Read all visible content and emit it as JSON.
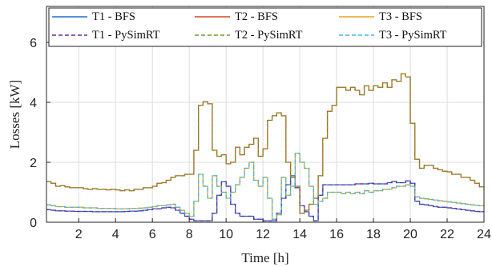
{
  "chart_data": {
    "type": "line",
    "step": true,
    "title": "",
    "xlabel": "Time [h]",
    "ylabel": "Losses [kW]",
    "xlim": [
      0.25,
      24
    ],
    "ylim": [
      0,
      7.2
    ],
    "xticks": [
      2,
      4,
      6,
      8,
      10,
      12,
      14,
      16,
      18,
      20,
      22,
      24
    ],
    "yticks": [
      0,
      2,
      4,
      6
    ],
    "grid": true,
    "legend": {
      "placement": "top",
      "columns": 3
    },
    "x": [
      0.25,
      0.5,
      0.75,
      1,
      1.25,
      1.5,
      1.75,
      2,
      2.25,
      2.5,
      2.75,
      3,
      3.25,
      3.5,
      3.75,
      4,
      4.25,
      4.5,
      4.75,
      5,
      5.25,
      5.5,
      5.75,
      6,
      6.25,
      6.5,
      6.75,
      7,
      7.25,
      7.5,
      7.75,
      8,
      8.25,
      8.5,
      8.75,
      9,
      9.25,
      9.5,
      9.75,
      10,
      10.25,
      10.5,
      10.75,
      11,
      11.25,
      11.5,
      11.75,
      12,
      12.25,
      12.5,
      12.75,
      13,
      13.25,
      13.5,
      13.75,
      14,
      14.25,
      14.5,
      14.75,
      15,
      15.25,
      15.5,
      15.75,
      16,
      16.25,
      16.5,
      16.75,
      17,
      17.25,
      17.5,
      17.75,
      18,
      18.25,
      18.5,
      18.75,
      19,
      19.25,
      19.5,
      19.75,
      20,
      20.25,
      20.5,
      20.75,
      21,
      21.25,
      21.5,
      21.75,
      22,
      22.25,
      22.5,
      22.75,
      23,
      23.25,
      23.5,
      23.75
    ],
    "series": [
      {
        "name": "T1 - BFS",
        "color": "#1f6fd0",
        "dash": "solid",
        "values": [
          0.42,
          0.4,
          0.38,
          0.38,
          0.37,
          0.37,
          0.36,
          0.36,
          0.36,
          0.36,
          0.35,
          0.35,
          0.35,
          0.35,
          0.35,
          0.35,
          0.35,
          0.36,
          0.37,
          0.37,
          0.38,
          0.4,
          0.42,
          0.45,
          0.45,
          0.48,
          0.5,
          0.48,
          0.4,
          0.3,
          0.2,
          0.1,
          0.05,
          0.05,
          0.05,
          0.05,
          0.3,
          0.9,
          1.35,
          1.2,
          0.6,
          0.3,
          0.2,
          0.2,
          0.2,
          0.1,
          0.1,
          0.05,
          0.05,
          0.05,
          0.3,
          0.8,
          1.25,
          1.55,
          1.15,
          0.55,
          0.35,
          0.2,
          0.05,
          0.9,
          1.25,
          1.25,
          1.25,
          1.25,
          1.25,
          1.25,
          1.25,
          1.28,
          1.28,
          1.28,
          1.3,
          1.28,
          1.28,
          1.28,
          1.32,
          1.36,
          1.32,
          1.32,
          1.38,
          1.3,
          0.7,
          0.6,
          0.58,
          0.55,
          0.52,
          0.5,
          0.5,
          0.48,
          0.46,
          0.44,
          0.42,
          0.4,
          0.38,
          0.36,
          0.35
        ]
      },
      {
        "name": "T2 - BFS",
        "color": "#d8471f",
        "dash": "solid",
        "values": [
          1.35,
          1.3,
          1.2,
          1.22,
          1.18,
          1.15,
          1.15,
          1.15,
          1.12,
          1.1,
          1.12,
          1.1,
          1.1,
          1.08,
          1.1,
          1.08,
          1.05,
          1.08,
          1.05,
          1.1,
          1.1,
          1.15,
          1.15,
          1.2,
          1.3,
          1.32,
          1.4,
          1.5,
          1.55,
          1.55,
          1.6,
          1.6,
          2.4,
          3.9,
          4.02,
          3.95,
          2.4,
          2.2,
          2.25,
          1.95,
          2.0,
          2.5,
          2.25,
          2.5,
          2.6,
          2.8,
          2.2,
          2.45,
          3.4,
          3.55,
          3.65,
          3.55,
          2.0,
          1.5,
          1.2,
          0.3,
          0.4,
          0.6,
          0.8,
          1.55,
          2.8,
          3.7,
          3.9,
          4.5,
          4.5,
          4.4,
          4.5,
          4.4,
          4.25,
          4.55,
          4.4,
          4.55,
          4.5,
          4.65,
          4.5,
          4.75,
          4.7,
          4.95,
          4.85,
          3.3,
          2.1,
          1.8,
          1.9,
          1.9,
          1.8,
          1.75,
          1.7,
          1.68,
          1.6,
          1.6,
          1.5,
          1.5,
          1.4,
          1.3,
          1.18
        ]
      },
      {
        "name": "T3 - BFS",
        "color": "#e8a41a",
        "dash": "solid",
        "values": [
          0.58,
          0.55,
          0.52,
          0.52,
          0.5,
          0.5,
          0.5,
          0.5,
          0.48,
          0.48,
          0.48,
          0.46,
          0.46,
          0.46,
          0.46,
          0.45,
          0.45,
          0.45,
          0.46,
          0.46,
          0.47,
          0.48,
          0.5,
          0.52,
          0.55,
          0.55,
          0.58,
          0.6,
          0.5,
          0.4,
          0.3,
          0.2,
          0.7,
          1.6,
          1.2,
          0.8,
          1.55,
          1.2,
          1.0,
          0.8,
          1.0,
          1.25,
          1.5,
          1.8,
          2.0,
          1.4,
          1.2,
          1.5,
          0.8,
          0.1,
          0.25,
          1.5,
          0.9,
          1.2,
          2.3,
          2.0,
          1.8,
          1.2,
          0.6,
          0.7,
          0.8,
          1.0,
          1.0,
          1.0,
          0.95,
          1.0,
          0.95,
          1.0,
          0.95,
          1.05,
          1.0,
          1.05,
          1.05,
          1.1,
          1.1,
          1.15,
          1.2,
          1.2,
          1.25,
          1.2,
          0.85,
          0.8,
          0.78,
          0.76,
          0.74,
          0.72,
          0.7,
          0.68,
          0.66,
          0.64,
          0.62,
          0.6,
          0.58,
          0.56,
          0.55
        ]
      },
      {
        "name": "T1 - PySimRT",
        "color": "#6a2b9a",
        "dash": "dashed",
        "values": [
          0.42,
          0.4,
          0.38,
          0.38,
          0.37,
          0.37,
          0.36,
          0.36,
          0.36,
          0.36,
          0.35,
          0.35,
          0.35,
          0.35,
          0.35,
          0.35,
          0.35,
          0.36,
          0.37,
          0.37,
          0.38,
          0.4,
          0.42,
          0.45,
          0.45,
          0.48,
          0.5,
          0.48,
          0.4,
          0.3,
          0.2,
          0.1,
          0.05,
          0.05,
          0.05,
          0.05,
          0.3,
          0.9,
          1.35,
          1.2,
          0.6,
          0.3,
          0.2,
          0.2,
          0.2,
          0.1,
          0.1,
          0.05,
          0.05,
          0.05,
          0.3,
          0.8,
          1.25,
          1.55,
          1.15,
          0.55,
          0.35,
          0.2,
          0.05,
          0.9,
          1.25,
          1.25,
          1.25,
          1.25,
          1.25,
          1.25,
          1.25,
          1.28,
          1.28,
          1.28,
          1.3,
          1.28,
          1.28,
          1.28,
          1.32,
          1.36,
          1.32,
          1.32,
          1.38,
          1.3,
          0.7,
          0.6,
          0.58,
          0.55,
          0.52,
          0.5,
          0.5,
          0.48,
          0.46,
          0.44,
          0.42,
          0.4,
          0.38,
          0.36,
          0.35
        ]
      },
      {
        "name": "T2 - PySimRT",
        "color": "#6f9a2a",
        "dash": "dashed",
        "values": [
          1.35,
          1.3,
          1.2,
          1.22,
          1.18,
          1.15,
          1.15,
          1.15,
          1.12,
          1.1,
          1.12,
          1.1,
          1.1,
          1.08,
          1.1,
          1.08,
          1.05,
          1.08,
          1.05,
          1.1,
          1.1,
          1.15,
          1.15,
          1.2,
          1.3,
          1.32,
          1.4,
          1.5,
          1.55,
          1.55,
          1.6,
          1.6,
          2.4,
          3.9,
          4.02,
          3.95,
          2.4,
          2.2,
          2.25,
          1.95,
          2.0,
          2.5,
          2.25,
          2.5,
          2.6,
          2.8,
          2.2,
          2.45,
          3.4,
          3.55,
          3.65,
          3.55,
          2.0,
          1.5,
          1.2,
          0.3,
          0.4,
          0.6,
          0.8,
          1.55,
          2.8,
          3.7,
          3.9,
          4.5,
          4.5,
          4.4,
          4.5,
          4.4,
          4.25,
          4.55,
          4.4,
          4.55,
          4.5,
          4.65,
          4.5,
          4.75,
          4.7,
          4.95,
          4.85,
          3.3,
          2.1,
          1.8,
          1.9,
          1.9,
          1.8,
          1.75,
          1.7,
          1.68,
          1.6,
          1.6,
          1.5,
          1.5,
          1.4,
          1.3,
          1.18
        ]
      },
      {
        "name": "T3 - PySimRT",
        "color": "#3fb8e0",
        "dash": "dashed",
        "values": [
          0.58,
          0.55,
          0.52,
          0.52,
          0.5,
          0.5,
          0.5,
          0.5,
          0.48,
          0.48,
          0.48,
          0.46,
          0.46,
          0.46,
          0.46,
          0.45,
          0.45,
          0.45,
          0.46,
          0.46,
          0.47,
          0.48,
          0.5,
          0.52,
          0.55,
          0.55,
          0.58,
          0.6,
          0.5,
          0.4,
          0.3,
          0.2,
          0.7,
          1.6,
          1.2,
          0.8,
          1.55,
          1.2,
          1.0,
          0.8,
          1.0,
          1.25,
          1.5,
          1.8,
          2.0,
          1.4,
          1.2,
          1.5,
          0.8,
          0.1,
          0.25,
          1.5,
          0.9,
          1.2,
          2.3,
          2.0,
          1.8,
          1.2,
          0.6,
          0.7,
          0.8,
          1.0,
          1.0,
          1.0,
          0.95,
          1.0,
          0.95,
          1.0,
          0.95,
          1.05,
          1.0,
          1.05,
          1.05,
          1.1,
          1.1,
          1.15,
          1.2,
          1.2,
          1.25,
          1.2,
          0.85,
          0.8,
          0.78,
          0.76,
          0.74,
          0.72,
          0.7,
          0.68,
          0.66,
          0.64,
          0.62,
          0.6,
          0.58,
          0.56,
          0.55
        ]
      }
    ]
  }
}
